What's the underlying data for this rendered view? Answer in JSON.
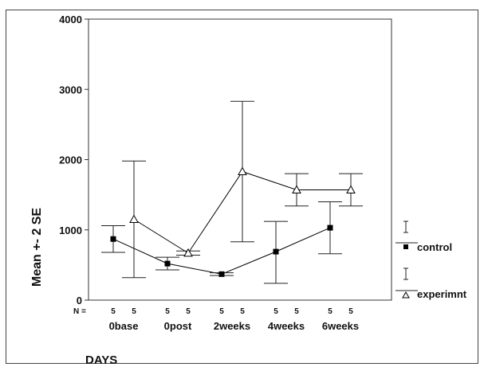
{
  "chart_data": {
    "type": "line",
    "title": "",
    "xlabel": "DAYS",
    "ylabel": "Mean +- 2 SE",
    "ylim": [
      0,
      4000
    ],
    "yticks": [
      0,
      1000,
      2000,
      3000,
      4000
    ],
    "ytick_labels": [
      "0",
      "1000",
      "2000",
      "3000",
      "4000"
    ],
    "categories": [
      "0base",
      "0post",
      "2weeks",
      "4weeks",
      "6weeks"
    ],
    "n_label": "N =",
    "n_values": [
      [
        "5",
        "5"
      ],
      [
        "5",
        "5"
      ],
      [
        "5",
        "5"
      ],
      [
        "5",
        "5"
      ],
      [
        "5",
        "5"
      ]
    ],
    "grid": false,
    "legend_position": "right",
    "error_bars": "Mean +- 2 SE",
    "series": [
      {
        "name": "control",
        "marker": "filled-square",
        "color": "#000000",
        "values": [
          870,
          520,
          370,
          690,
          1030
        ],
        "lower": [
          680,
          430,
          350,
          240,
          660
        ],
        "upper": [
          1060,
          610,
          390,
          1120,
          1400
        ]
      },
      {
        "name": "experimnt",
        "marker": "open-triangle",
        "color": "#000000",
        "values": [
          1150,
          670,
          1830,
          1570,
          1570
        ],
        "lower": [
          320,
          640,
          830,
          1340,
          1340
        ],
        "upper": [
          1980,
          700,
          2830,
          1800,
          1800
        ]
      }
    ]
  }
}
